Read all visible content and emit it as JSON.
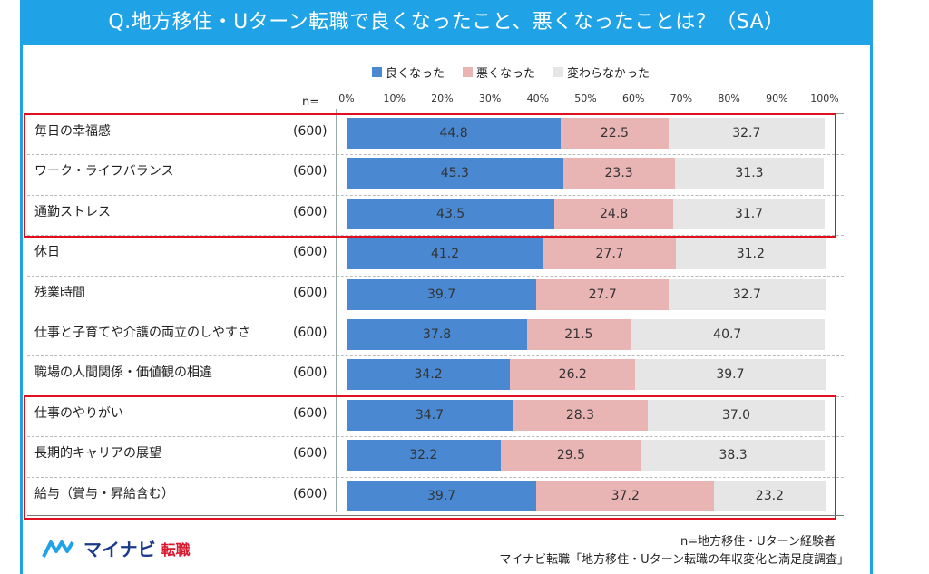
{
  "title": "Q.地方移住・Uターン転職で良くなったこと、悪くなったことは？（SA）",
  "n_label": "n=",
  "colors": {
    "good": "#4a89d2",
    "bad": "#e8b4b4",
    "neutral": "#e6e6e6",
    "accent": "#1fa3e6",
    "highlight": "#e0101e"
  },
  "legend": [
    "良くなった",
    "悪くなった",
    "変わらなかった"
  ],
  "chart_data": {
    "type": "bar",
    "stacked": true,
    "orientation": "horizontal",
    "xlim": [
      0,
      100
    ],
    "tick_labels": [
      "0%",
      "10%",
      "20%",
      "30%",
      "40%",
      "50%",
      "60%",
      "70%",
      "80%",
      "90%",
      "100%"
    ],
    "categories": [
      "毎日の幸福感",
      "ワーク・ライフバランス",
      "通勤ストレス",
      "休日",
      "残業時間",
      "仕事と子育てや介護の両立のしやすさ",
      "職場の人間関係・価値観の相違",
      "仕事のやりがい",
      "長期的キャリアの展望",
      "給与（賞与・昇給含む）"
    ],
    "n": [
      "(600)",
      "(600)",
      "(600)",
      "(600)",
      "(600)",
      "(600)",
      "(600)",
      "(600)",
      "(600)",
      "(600)"
    ],
    "series": [
      {
        "name": "良くなった",
        "values": [
          44.8,
          45.3,
          43.5,
          41.2,
          39.7,
          37.8,
          34.2,
          34.7,
          32.2,
          39.7
        ],
        "labels": [
          "44.8",
          "45.3",
          "43.5",
          "41.2",
          "39.7",
          "37.8",
          "34.2",
          "34.7",
          "32.2",
          "39.7"
        ]
      },
      {
        "name": "悪くなった",
        "values": [
          22.5,
          23.3,
          24.8,
          27.7,
          27.7,
          21.5,
          26.2,
          28.3,
          29.5,
          37.2
        ],
        "labels": [
          "22.5",
          "23.3",
          "24.8",
          "27.7",
          "27.7",
          "21.5",
          "26.2",
          "28.3",
          "29.5",
          "37.2"
        ]
      },
      {
        "name": "変わらなかった",
        "values": [
          32.7,
          31.3,
          31.7,
          31.2,
          32.7,
          40.7,
          39.7,
          37.0,
          38.3,
          23.2
        ],
        "labels": [
          "32.7",
          "31.3",
          "31.7",
          "31.2",
          "32.7",
          "40.7",
          "39.7",
          "37.0",
          "38.3",
          "23.2"
        ]
      }
    ],
    "highlight_groups": [
      [
        0,
        2
      ],
      [
        7,
        9
      ]
    ]
  },
  "logo": {
    "main": "マイナビ",
    "sub": "転職"
  },
  "notes": {
    "sample": "n=地方移住・Uターン経験者",
    "source": "マイナビ転職「地方移住・Uターン転職の年収変化と満足度調査」"
  }
}
